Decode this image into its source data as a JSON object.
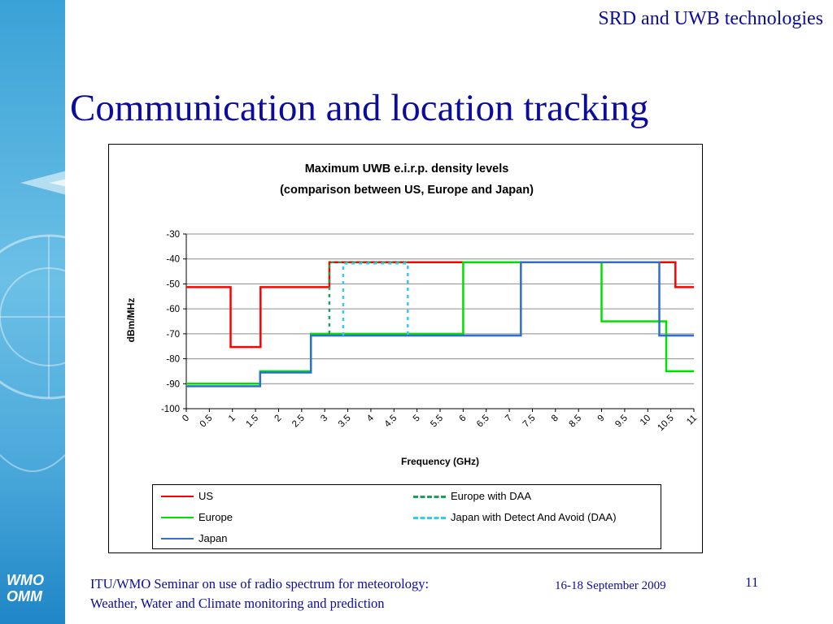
{
  "header": {
    "tag": "SRD and UWB technologies"
  },
  "slide": {
    "title": "Communication and location tracking"
  },
  "branding": {
    "logo_line1": "WMO",
    "logo_line2": "OMM"
  },
  "footer": {
    "line1": "ITU/WMO Seminar on use of radio spectrum for meteorology:",
    "line2": "Weather, Water and Climate monitoring and prediction",
    "date": "16-18 September 2009",
    "page": "11"
  },
  "chart_data": {
    "type": "line",
    "title": "Maximum UWB e.i.r.p. density levels",
    "subtitle": "(comparison between US, Europe and Japan)",
    "xlabel": "Frequency (GHz)",
    "ylabel": "dBm/MHz",
    "xlim": [
      0,
      11
    ],
    "ylim": [
      -100,
      -30
    ],
    "grid": "horizontal",
    "legend_position": "bottom",
    "x_ticks": [
      "0",
      "0.5",
      "1",
      "1.5",
      "2",
      "2.5",
      "3",
      "3.5",
      "4",
      "4.5",
      "5",
      "5.5",
      "6",
      "6.5",
      "7",
      "7.5",
      "8",
      "8.5",
      "9",
      "9.5",
      "10",
      "10.5",
      "11"
    ],
    "y_ticks": [
      "-30",
      "-40",
      "-50",
      "-60",
      "-70",
      "-80",
      "-90",
      "-100"
    ],
    "series": [
      {
        "name": "US",
        "color": "#ff0000",
        "style": "solid",
        "x": [
          0,
          0.96,
          0.96,
          1.61,
          1.61,
          3.1,
          3.1,
          10.6,
          10.6,
          11
        ],
        "y": [
          -51.3,
          -51.3,
          -75.3,
          -75.3,
          -51.3,
          -51.3,
          -41.3,
          -41.3,
          -51.3,
          -51.3
        ]
      },
      {
        "name": "Europe",
        "color": "#00e000",
        "style": "solid",
        "x": [
          0,
          1.6,
          1.6,
          2.7,
          2.7,
          6.0,
          6.0,
          9.0,
          9.0,
          10.4,
          10.4,
          11
        ],
        "y": [
          -90,
          -90,
          -85,
          -85,
          -70,
          -70,
          -41.3,
          -41.3,
          -65,
          -65,
          -85,
          -85
        ]
      },
      {
        "name": "Japan",
        "color": "#2e6fd1",
        "style": "solid",
        "x": [
          0,
          1.6,
          1.6,
          2.7,
          2.7,
          7.25,
          7.25,
          10.25,
          10.25,
          11
        ],
        "y": [
          -91,
          -91,
          -85.5,
          -85.5,
          -70.7,
          -70.7,
          -41.3,
          -41.3,
          -70.7,
          -70.7
        ]
      },
      {
        "name": "Europe with DAA",
        "color": "#1e9e5a",
        "style": "dashed",
        "x": [
          3.1,
          3.1,
          4.8
        ],
        "y": [
          -70,
          -41.3,
          -41.3
        ]
      },
      {
        "name": "Japan with Detect And Avoid (DAA)",
        "color": "#33ccee",
        "style": "dashed",
        "x": [
          3.4,
          3.4,
          4.8,
          4.8
        ],
        "y": [
          -70.7,
          -41.8,
          -41.8,
          -70.7
        ]
      }
    ]
  }
}
